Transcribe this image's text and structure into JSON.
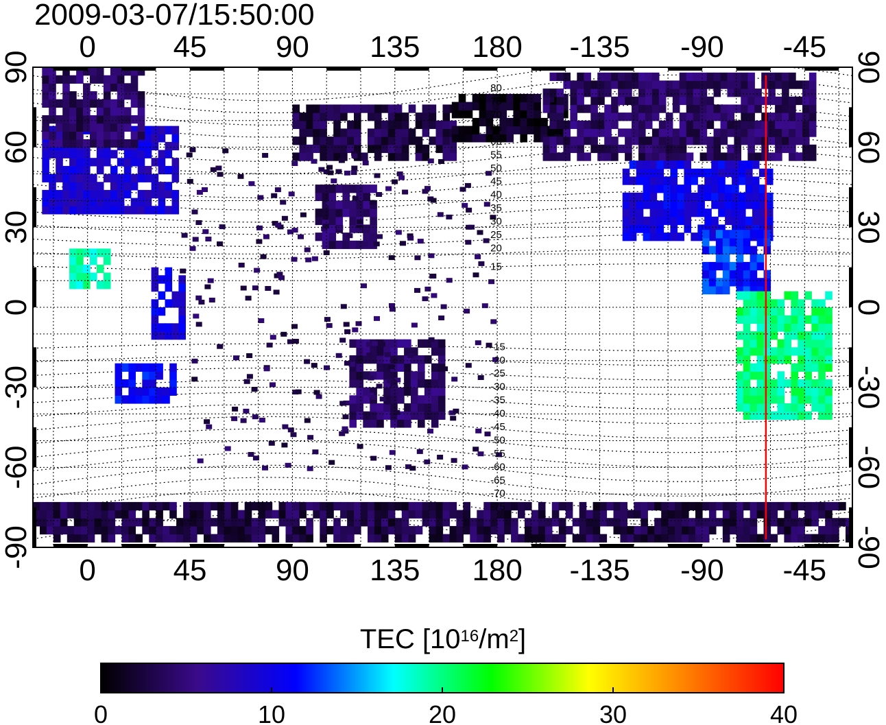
{
  "header": {
    "datetime": "2009-03-07/15:50:00"
  },
  "map": {
    "longitude_ticks": [
      {
        "lon": 0,
        "label": "0"
      },
      {
        "lon": 45,
        "label": "45"
      },
      {
        "lon": 90,
        "label": "90"
      },
      {
        "lon": 135,
        "label": "135"
      },
      {
        "lon": 180,
        "label": "180"
      },
      {
        "lon": 225,
        "label": "-135"
      },
      {
        "lon": 270,
        "label": "-90"
      },
      {
        "lon": 315,
        "label": "-45"
      }
    ],
    "latitude_ticks": [
      {
        "lat": 90,
        "label": "90"
      },
      {
        "lat": 60,
        "label": "60"
      },
      {
        "lat": 30,
        "label": "30"
      },
      {
        "lat": 0,
        "label": "0"
      },
      {
        "lat": -30,
        "label": "-30"
      },
      {
        "lat": -60,
        "label": "-60"
      },
      {
        "lat": -90,
        "label": "-90"
      }
    ],
    "lon_range": [
      -24,
      336
    ],
    "lat_range": [
      -90,
      90
    ],
    "terminator_longitude": -62,
    "contour_labels": [
      "80",
      "75",
      "70",
      "65",
      "60",
      "55",
      "50",
      "45",
      "40",
      "35",
      "30",
      "25",
      "20",
      "15",
      "-15",
      "-20",
      "-25",
      "-30",
      "-35",
      "-40",
      "-45",
      "-50",
      "-55",
      "-60",
      "-65",
      "-70",
      "-75"
    ],
    "tec_regions": [
      {
        "name": "europe",
        "lon": [
          -20,
          40
        ],
        "lat": [
          35,
          68
        ],
        "tec": 9
      },
      {
        "name": "north-atlantic-europe",
        "lon": [
          -20,
          25
        ],
        "lat": [
          60,
          88
        ],
        "tec": 4
      },
      {
        "name": "west-africa",
        "lon": [
          -8,
          8
        ],
        "lat": [
          7,
          22
        ],
        "tec": 19
      },
      {
        "name": "east-africa",
        "lon": [
          28,
          42
        ],
        "lat": [
          -12,
          15
        ],
        "tec": 10
      },
      {
        "name": "southern-africa",
        "lon": [
          12,
          38
        ],
        "lat": [
          -36,
          -22
        ],
        "tec": 11
      },
      {
        "name": "china",
        "lon": [
          100,
          125
        ],
        "lat": [
          22,
          45
        ],
        "tec": 4
      },
      {
        "name": "siberia",
        "lon": [
          90,
          160
        ],
        "lat": [
          55,
          75
        ],
        "tec": 3
      },
      {
        "name": "arctic-pacific",
        "lon": [
          160,
          210
        ],
        "lat": [
          62,
          80
        ],
        "tec": 1
      },
      {
        "name": "alaska-canada",
        "lon": [
          200,
          320
        ],
        "lat": [
          55,
          88
        ],
        "tec": 4
      },
      {
        "name": "north-america",
        "lon": [
          235,
          300
        ],
        "lat": [
          25,
          55
        ],
        "tec": 10
      },
      {
        "name": "caribbean",
        "lon": [
          270,
          300
        ],
        "lat": [
          5,
          28
        ],
        "tec": 12
      },
      {
        "name": "south-america",
        "lon": [
          285,
          325
        ],
        "lat": [
          -42,
          5
        ],
        "tec": 20
      },
      {
        "name": "australia",
        "lon": [
          115,
          155
        ],
        "lat": [
          -45,
          -12
        ],
        "tec": 4
      },
      {
        "name": "antarctica",
        "lon": [
          -24,
          336
        ],
        "lat": [
          -88,
          -75
        ],
        "tec": 3
      }
    ]
  },
  "colorbar": {
    "title": "TEC  [10",
    "exponent": "16",
    "unit_mid": "/m",
    "unit_exp": "2",
    "unit_end": "]",
    "min": 0,
    "max": 40,
    "ticks": [
      {
        "value": 0,
        "label": "0"
      },
      {
        "value": 10,
        "label": "10"
      },
      {
        "value": 20,
        "label": "20"
      },
      {
        "value": 30,
        "label": "30"
      },
      {
        "value": 40,
        "label": "40"
      }
    ],
    "colors": [
      "#000000",
      "#3a0a8c",
      "#0000ff",
      "#00ffff",
      "#00ff00",
      "#ffff00",
      "#ff8000",
      "#ff0000"
    ]
  },
  "colors": {
    "terminator": "#ff0000"
  }
}
